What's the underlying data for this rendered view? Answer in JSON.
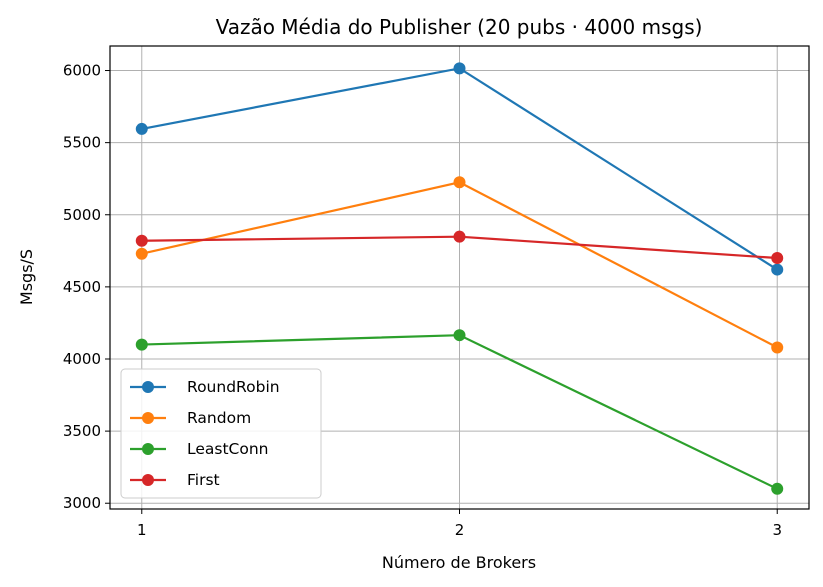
{
  "chart_data": {
    "type": "line",
    "title": "Vazão Média do Publisher (20 pubs · 4000 msgs)",
    "xlabel": "Número de Brokers",
    "ylabel": "Msgs/S",
    "x": [
      1,
      2,
      3
    ],
    "xlim": [
      0.9,
      3.1
    ],
    "ylim": [
      2960,
      6170
    ],
    "xticks": [
      1,
      2,
      3
    ],
    "yticks": [
      3000,
      3500,
      4000,
      4500,
      5000,
      5500,
      6000
    ],
    "grid": true,
    "legend_position": "lower-left",
    "marker": "circle",
    "series": [
      {
        "name": "RoundRobin",
        "color": "#1f77b4",
        "values": [
          5595,
          6015,
          4620
        ]
      },
      {
        "name": "Random",
        "color": "#ff7f0e",
        "values": [
          4730,
          5225,
          4080
        ]
      },
      {
        "name": "LeastConn",
        "color": "#2ca02c",
        "values": [
          4100,
          4165,
          3100
        ]
      },
      {
        "name": "First",
        "color": "#d62728",
        "values": [
          4820,
          4848,
          4700
        ]
      }
    ]
  }
}
